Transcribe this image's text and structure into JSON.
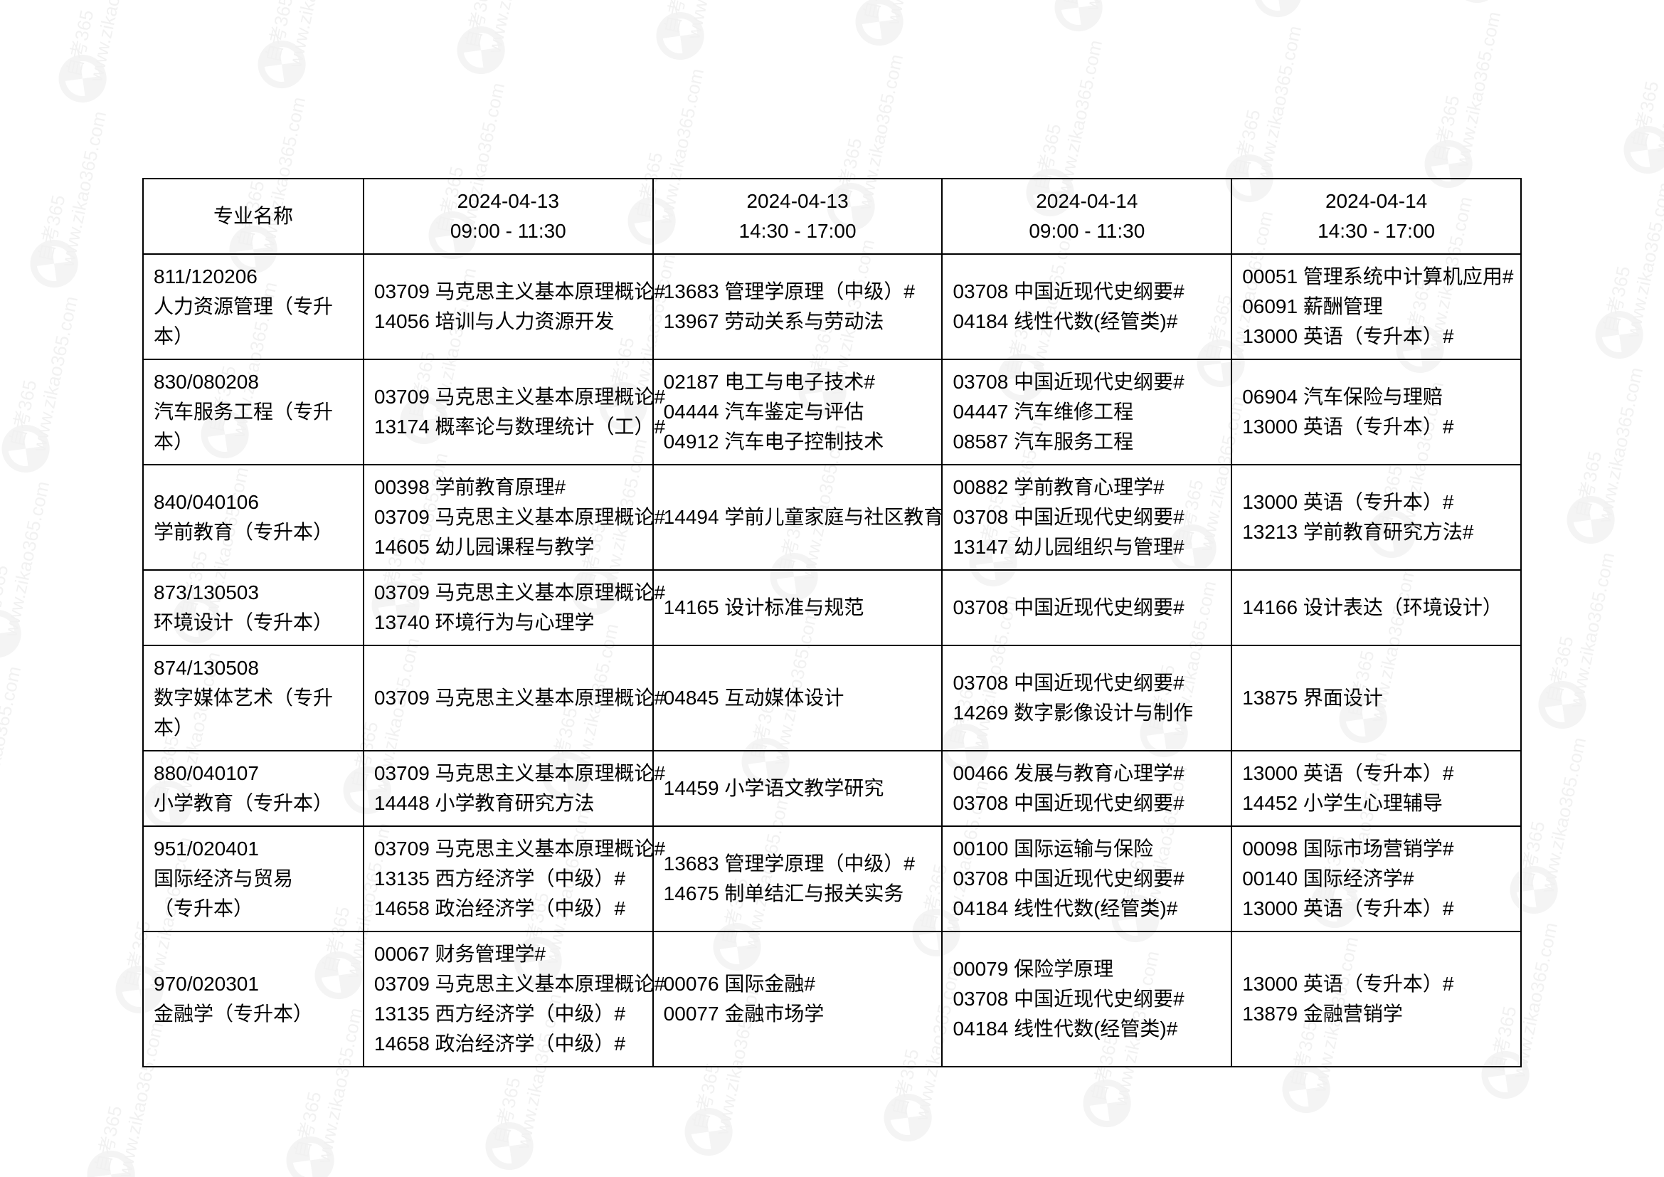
{
  "watermark": {
    "text": "自考365",
    "url_text": "www.zikao365.com",
    "logo_color": "#9e9e9e",
    "positions": [
      [
        80,
        60
      ],
      [
        360,
        40
      ],
      [
        640,
        20
      ],
      [
        920,
        0
      ],
      [
        1200,
        -20
      ],
      [
        1480,
        -40
      ],
      [
        1760,
        -60
      ],
      [
        2040,
        -80
      ],
      [
        2320,
        -100
      ],
      [
        40,
        320
      ],
      [
        320,
        300
      ],
      [
        600,
        280
      ],
      [
        880,
        260
      ],
      [
        1160,
        240
      ],
      [
        1440,
        220
      ],
      [
        1720,
        200
      ],
      [
        2000,
        180
      ],
      [
        2280,
        160
      ],
      [
        0,
        580
      ],
      [
        280,
        560
      ],
      [
        560,
        540
      ],
      [
        840,
        520
      ],
      [
        1120,
        500
      ],
      [
        1400,
        480
      ],
      [
        1680,
        460
      ],
      [
        1960,
        440
      ],
      [
        2240,
        420
      ],
      [
        -40,
        840
      ],
      [
        240,
        820
      ],
      [
        520,
        800
      ],
      [
        800,
        780
      ],
      [
        1080,
        760
      ],
      [
        1360,
        740
      ],
      [
        1640,
        720
      ],
      [
        1920,
        700
      ],
      [
        2200,
        680
      ],
      [
        -80,
        1100
      ],
      [
        200,
        1080
      ],
      [
        480,
        1060
      ],
      [
        760,
        1040
      ],
      [
        1040,
        1020
      ],
      [
        1320,
        1000
      ],
      [
        1600,
        980
      ],
      [
        1880,
        960
      ],
      [
        2160,
        940
      ],
      [
        -120,
        1360
      ],
      [
        160,
        1340
      ],
      [
        440,
        1320
      ],
      [
        720,
        1300
      ],
      [
        1000,
        1280
      ],
      [
        1280,
        1260
      ],
      [
        1560,
        1240
      ],
      [
        1840,
        1220
      ],
      [
        2120,
        1200
      ],
      [
        -160,
        1620
      ],
      [
        120,
        1600
      ],
      [
        400,
        1580
      ],
      [
        680,
        1560
      ],
      [
        960,
        1540
      ],
      [
        1240,
        1520
      ],
      [
        1520,
        1500
      ],
      [
        1800,
        1480
      ],
      [
        2080,
        1460
      ]
    ]
  },
  "table": {
    "header": {
      "major_label": "专业名称",
      "sessions": [
        {
          "date": "2024-04-13",
          "time": "09:00 - 11:30"
        },
        {
          "date": "2024-04-13",
          "time": "14:30 - 17:00"
        },
        {
          "date": "2024-04-14",
          "time": "09:00 - 11:30"
        },
        {
          "date": "2024-04-14",
          "time": "14:30 - 17:00"
        }
      ]
    },
    "rows": [
      {
        "major": [
          "811/120206",
          "人力资源管理（专升本）"
        ],
        "slots": [
          [
            "03709  马克思主义基本原理概论#",
            "14056  培训与人力资源开发"
          ],
          [
            "13683  管理学原理（中级）#",
            "13967  劳动关系与劳动法"
          ],
          [
            "03708  中国近现代史纲要#",
            "04184  线性代数(经管类)#"
          ],
          [
            "00051  管理系统中计算机应用#",
            "06091  薪酬管理",
            "13000  英语（专升本）#"
          ]
        ]
      },
      {
        "major": [
          "830/080208",
          "汽车服务工程（专升本）"
        ],
        "slots": [
          [
            "03709  马克思主义基本原理概论#",
            "13174  概率论与数理统计（工）#"
          ],
          [
            "02187  电工与电子技术#",
            "04444  汽车鉴定与评估",
            "04912  汽车电子控制技术"
          ],
          [
            "03708  中国近现代史纲要#",
            "04447  汽车维修工程",
            "08587  汽车服务工程"
          ],
          [
            "06904  汽车保险与理赔",
            "13000  英语（专升本）#"
          ]
        ]
      },
      {
        "major": [
          "840/040106",
          "学前教育（专升本）"
        ],
        "slots": [
          [
            "00398  学前教育原理#",
            "03709  马克思主义基本原理概论#",
            "14605  幼儿园课程与教学"
          ],
          [
            "14494  学前儿童家庭与社区教育"
          ],
          [
            "00882  学前教育心理学#",
            "03708  中国近现代史纲要#",
            "13147  幼儿园组织与管理#"
          ],
          [
            "13000  英语（专升本）#",
            "13213  学前教育研究方法#"
          ]
        ]
      },
      {
        "major": [
          "873/130503",
          "环境设计（专升本）"
        ],
        "slots": [
          [
            "03709  马克思主义基本原理概论#",
            "13740  环境行为与心理学"
          ],
          [
            "14165  设计标准与规范"
          ],
          [
            "03708  中国近现代史纲要#"
          ],
          [
            "14166  设计表达（环境设计）"
          ]
        ]
      },
      {
        "major": [
          "874/130508",
          "数字媒体艺术（专升本）"
        ],
        "slots": [
          [
            "03709  马克思主义基本原理概论#"
          ],
          [
            "04845  互动媒体设计"
          ],
          [
            "03708  中国近现代史纲要#",
            "14269  数字影像设计与制作"
          ],
          [
            "13875  界面设计"
          ]
        ]
      },
      {
        "major": [
          "880/040107",
          "小学教育（专升本）"
        ],
        "slots": [
          [
            "03709  马克思主义基本原理概论#",
            "14448  小学教育研究方法"
          ],
          [
            "14459  小学语文教学研究"
          ],
          [
            "00466  发展与教育心理学#",
            "03708  中国近现代史纲要#"
          ],
          [
            "13000  英语（专升本）#",
            "14452  小学生心理辅导"
          ]
        ]
      },
      {
        "major": [
          "951/020401",
          "国际经济与贸易",
          "（专升本）"
        ],
        "slots": [
          [
            "03709  马克思主义基本原理概论#",
            "13135  西方经济学（中级）#",
            "14658  政治经济学（中级）#"
          ],
          [
            "13683  管理学原理（中级）#",
            "14675  制单结汇与报关实务"
          ],
          [
            "00100  国际运输与保险",
            "03708  中国近现代史纲要#",
            "04184  线性代数(经管类)#"
          ],
          [
            "00098  国际市场营销学#",
            "00140  国际经济学#",
            "13000  英语（专升本）#"
          ]
        ]
      },
      {
        "major": [
          "970/020301",
          "金融学（专升本）"
        ],
        "slots": [
          [
            "00067  财务管理学#",
            "03709  马克思主义基本原理概论#",
            "13135  西方经济学（中级）#",
            "14658  政治经济学（中级）#"
          ],
          [
            "00076  国际金融#",
            "00077  金融市场学"
          ],
          [
            "00079  保险学原理",
            "03708  中国近现代史纲要#",
            "04184  线性代数(经管类)#"
          ],
          [
            "13000  英语（专升本）#",
            "13879  金融营销学"
          ]
        ]
      }
    ]
  }
}
